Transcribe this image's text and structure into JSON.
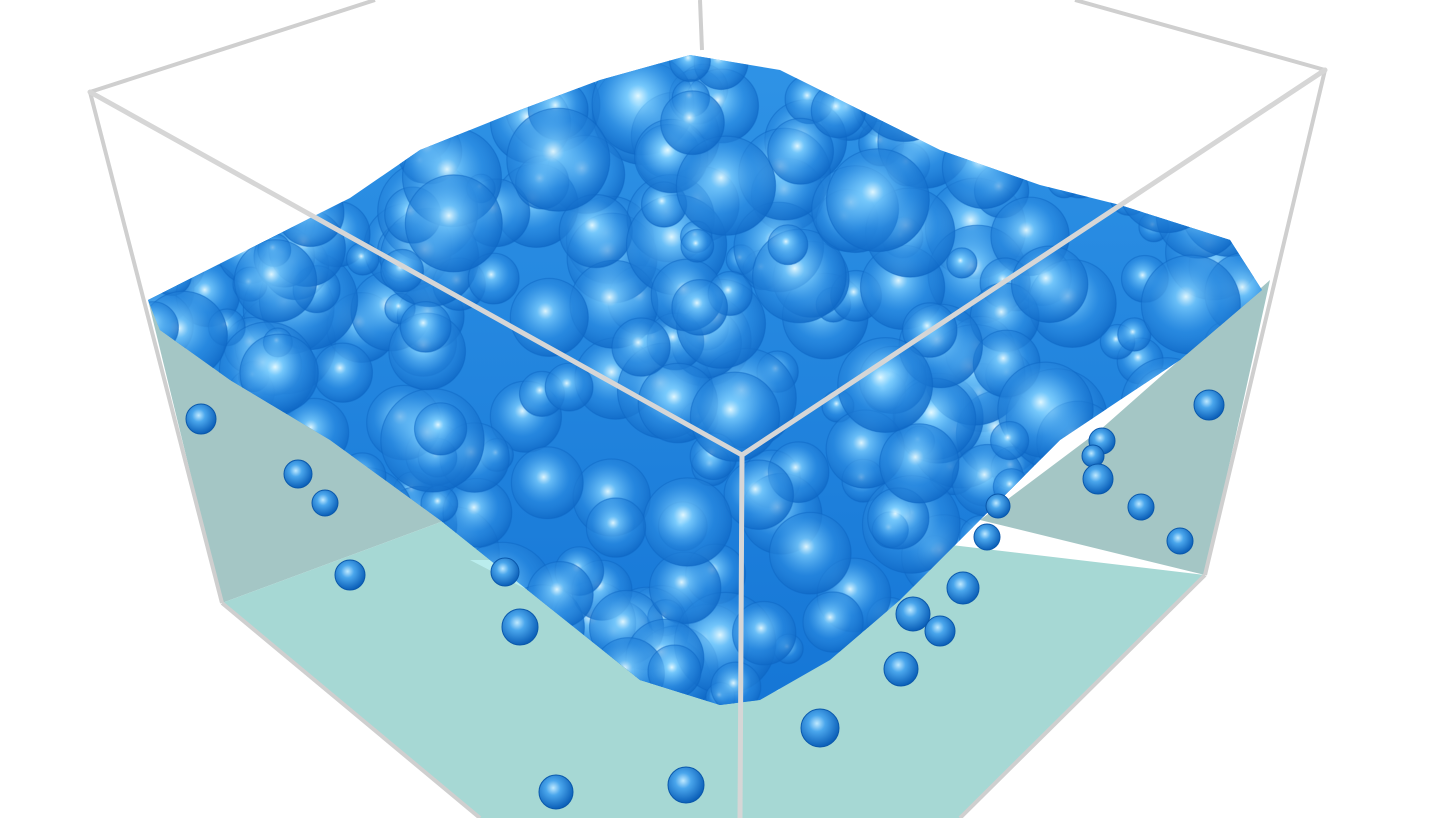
{
  "scene": {
    "subject": "foam-bubbles-in-liquid-box",
    "colors": {
      "background": "#ffffff",
      "box_edge": "#cfcfcf",
      "liquid_side": "#9fc3c2",
      "liquid_floor": "#a6d8d4",
      "liquid_surface": "#bdeff0",
      "bubble_dark": "#0d66c4",
      "bubble_mid": "#2a8ae0",
      "bubble_light": "#7fd0ff",
      "bubble_highlight": "#e8fbff"
    }
  }
}
